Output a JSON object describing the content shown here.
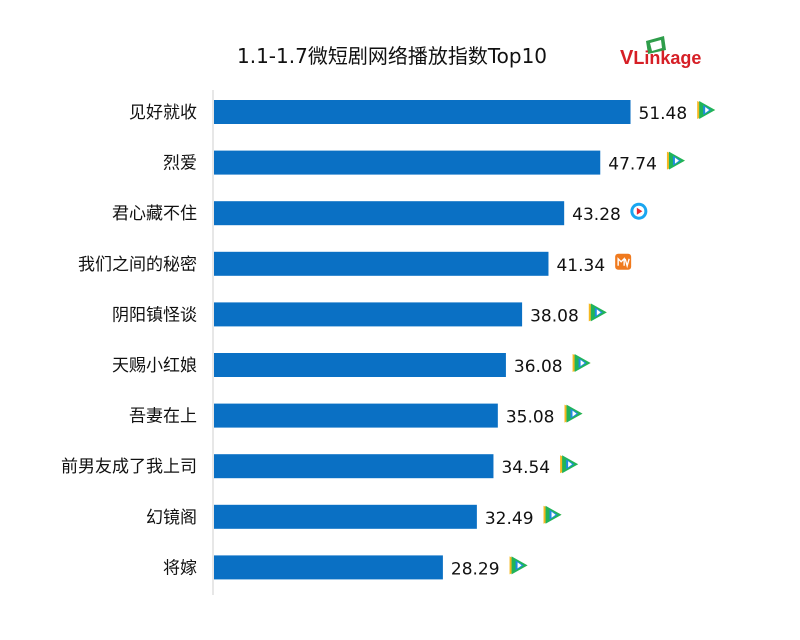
{
  "chart_data": {
    "type": "bar",
    "orientation": "horizontal",
    "title": "1.1-1.7微短剧网络播放指数Top10",
    "categories": [
      "见好就收",
      "烈爱",
      "君心藏不住",
      "我们之间的秘密",
      "阴阳镇怪谈",
      "天赐小红娘",
      "吾妻在上",
      "前男友成了我上司",
      "幻镜阁",
      "将嫁"
    ],
    "values": [
      51.48,
      47.74,
      43.28,
      41.34,
      38.08,
      36.08,
      35.08,
      34.54,
      32.49,
      28.29
    ],
    "value_labels": [
      "51.48",
      "47.74",
      "43.28",
      "41.34",
      "38.08",
      "36.08",
      "35.08",
      "34.54",
      "32.49",
      "28.29"
    ],
    "platform_icons": [
      "tencent-video-icon",
      "tencent-video-icon",
      "youku-icon",
      "mango-tv-icon",
      "tencent-video-icon",
      "tencent-video-icon",
      "tencent-video-icon",
      "tencent-video-icon",
      "tencent-video-icon",
      "tencent-video-icon"
    ],
    "xlim": [
      0,
      55
    ],
    "bar_color": "#0a70c4",
    "grid": false,
    "legend": "none"
  },
  "logo": {
    "first": "V",
    "rest": "Linkage",
    "color": "#d61f26"
  },
  "icon_colors": {
    "tencent_green": "#20b45a",
    "tencent_yellow": "#f5b820",
    "tencent_blue": "#1f8be0",
    "youku_blue": "#1aa6f0",
    "youku_red": "#e8262f",
    "mango_orange": "#f07a1e"
  }
}
